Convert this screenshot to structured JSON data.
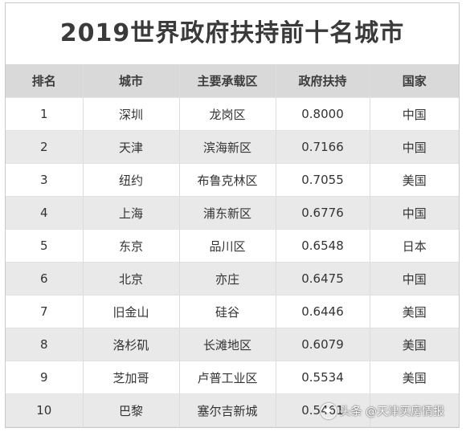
{
  "title": "2019世界政府扶持前十名城市",
  "table": {
    "headers": [
      "排名",
      "城市",
      "主要承载区",
      "政府扶持",
      "国家"
    ],
    "rows": [
      [
        "1",
        "深圳",
        "龙岗区",
        "0.8000",
        "中国"
      ],
      [
        "2",
        "天津",
        "滨海新区",
        "0.7166",
        "中国"
      ],
      [
        "3",
        "纽约",
        "布鲁克林区",
        "0.7055",
        "美国"
      ],
      [
        "4",
        "上海",
        "浦东新区",
        "0.6776",
        "中国"
      ],
      [
        "5",
        "东京",
        "品川区",
        "0.6548",
        "日本"
      ],
      [
        "6",
        "北京",
        "亦庄",
        "0.6475",
        "中国"
      ],
      [
        "7",
        "旧金山",
        "硅谷",
        "0.6446",
        "美国"
      ],
      [
        "8",
        "洛杉矶",
        "长滩地区",
        "0.6079",
        "美国"
      ],
      [
        "9",
        "芝加哥",
        "卢普工业区",
        "0.5534",
        "美国"
      ],
      [
        "10",
        "巴黎",
        "塞尔吉新城",
        "0.5461",
        ""
      ]
    ]
  },
  "watermark": {
    "text": "头条 @天津买房情报"
  },
  "colors": {
    "header_bg": "#d9d9d9",
    "stripe_bg": "#e9e9e9"
  }
}
